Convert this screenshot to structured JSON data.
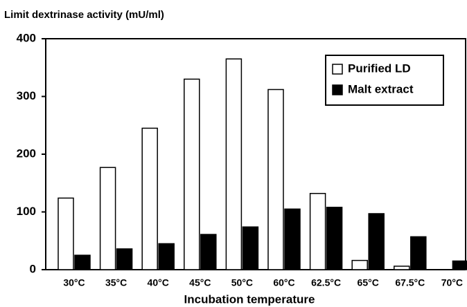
{
  "chart_data": {
    "type": "bar",
    "ylabel": "Limit dextrinase activity (mU/ml)",
    "xlabel": "Incubation temperature",
    "categories": [
      "30°C",
      "35°C",
      "40°C",
      "45°C",
      "50°C",
      "60°C",
      "62.5°C",
      "65°C",
      "67.5°C",
      "70°C"
    ],
    "series": [
      {
        "name": "Purified LD",
        "color": "#ffffff",
        "values": [
          124,
          177,
          245,
          330,
          365,
          312,
          132,
          16,
          6,
          0
        ]
      },
      {
        "name": "Malt extract",
        "color": "#000000",
        "values": [
          25,
          36,
          45,
          61,
          74,
          105,
          108,
          97,
          57,
          15
        ]
      }
    ],
    "ylim": [
      0,
      400
    ],
    "yticks": [
      0,
      100,
      200,
      300,
      400
    ],
    "legend": "upper right"
  }
}
